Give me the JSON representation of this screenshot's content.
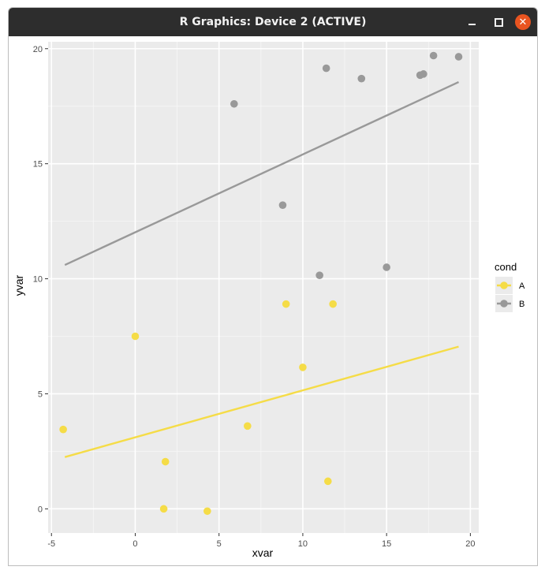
{
  "window": {
    "title": "R Graphics: Device 2 (ACTIVE)",
    "controls": {
      "minimize": "minimize-icon",
      "maximize": "maximize-icon",
      "close": "close-icon"
    }
  },
  "chart_data": {
    "type": "scatter",
    "xlabel": "xvar",
    "ylabel": "yvar",
    "xlim": [
      -5.2,
      20.5
    ],
    "ylim": [
      -1.05,
      20.3
    ],
    "xticks": [
      -5,
      0,
      5,
      10,
      15,
      20
    ],
    "yticks": [
      0,
      5,
      10,
      15,
      20
    ],
    "grid": true,
    "legend": {
      "title": "cond",
      "position": "right"
    },
    "series": [
      {
        "name": "A",
        "color": "#f5dc47",
        "points": [
          {
            "x": -4.3,
            "y": 3.45
          },
          {
            "x": 0.0,
            "y": 7.5
          },
          {
            "x": 1.7,
            "y": 0.0
          },
          {
            "x": 1.8,
            "y": 2.05
          },
          {
            "x": 4.3,
            "y": -0.1
          },
          {
            "x": 6.7,
            "y": 3.6
          },
          {
            "x": 9.0,
            "y": 8.9
          },
          {
            "x": 10.0,
            "y": 6.15
          },
          {
            "x": 11.5,
            "y": 1.2
          },
          {
            "x": 11.8,
            "y": 8.9
          }
        ],
        "fit": {
          "x": [
            -4.2,
            19.3
          ],
          "y": [
            2.25,
            7.05
          ]
        }
      },
      {
        "name": "B",
        "color": "#999999",
        "points": [
          {
            "x": 5.9,
            "y": 17.6
          },
          {
            "x": 8.8,
            "y": 13.2
          },
          {
            "x": 11.0,
            "y": 10.15
          },
          {
            "x": 11.4,
            "y": 19.15
          },
          {
            "x": 13.5,
            "y": 18.7
          },
          {
            "x": 15.0,
            "y": 10.5
          },
          {
            "x": 17.0,
            "y": 18.85
          },
          {
            "x": 17.2,
            "y": 18.9
          },
          {
            "x": 17.8,
            "y": 19.7
          },
          {
            "x": 19.3,
            "y": 19.65
          }
        ],
        "fit": {
          "x": [
            -4.2,
            19.3
          ],
          "y": [
            10.6,
            18.55
          ]
        }
      }
    ]
  }
}
